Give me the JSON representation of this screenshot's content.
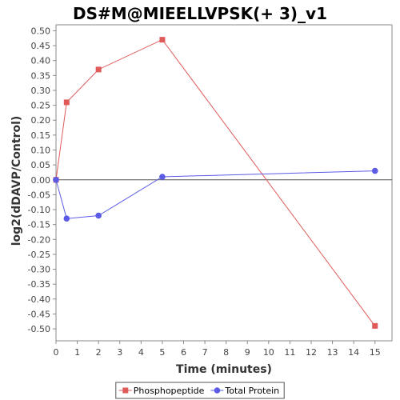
{
  "chart_data": {
    "type": "line",
    "title": "DS#M@MIEELLVPSK(+ 3)_v1",
    "xlabel": "Time (minutes)",
    "ylabel": "log2(dDAVP/Control)",
    "xlim": [
      0,
      15.8
    ],
    "ylim": [
      -0.54,
      0.52
    ],
    "x_ticks": [
      0,
      1,
      2,
      3,
      4,
      5,
      6,
      7,
      8,
      9,
      10,
      11,
      12,
      13,
      14,
      15
    ],
    "x_tick_labels": [
      "0",
      "1",
      "2",
      "3",
      "4",
      "5",
      "6",
      "7",
      "8",
      "9",
      "10",
      "11",
      "12",
      "13",
      "14",
      "15"
    ],
    "y_ticks": [
      0.5,
      0.45,
      0.4,
      0.35,
      0.3,
      0.25,
      0.2,
      0.15,
      0.1,
      0.05,
      0.0,
      -0.05,
      -0.1,
      -0.15,
      -0.2,
      -0.25,
      -0.3,
      -0.35,
      -0.4,
      -0.45,
      -0.5
    ],
    "y_tick_labels": [
      "0.50",
      "0.45",
      "0.40",
      "0.35",
      "0.30",
      "0.25",
      "0.20",
      "0.15",
      "0.10",
      "0.05",
      "0.00",
      "-0.05",
      "-0.10",
      "-0.15",
      "-0.20",
      "-0.25",
      "-0.30",
      "-0.35",
      "-0.40",
      "-0.45",
      "-0.50"
    ],
    "grid": false,
    "zero_line": true,
    "legend_position": "bottom-center",
    "series": [
      {
        "name": "Phosphopeptide",
        "color": "#e05a5a",
        "marker": "square",
        "x": [
          0,
          0.5,
          2,
          5,
          15
        ],
        "y": [
          0.0,
          0.26,
          0.37,
          0.47,
          -0.49
        ]
      },
      {
        "name": "Total Protein",
        "color": "#5b5be6",
        "marker": "circle",
        "x": [
          0,
          0.5,
          2,
          5,
          15
        ],
        "y": [
          0.0,
          -0.13,
          -0.12,
          0.01,
          0.03
        ]
      }
    ]
  }
}
